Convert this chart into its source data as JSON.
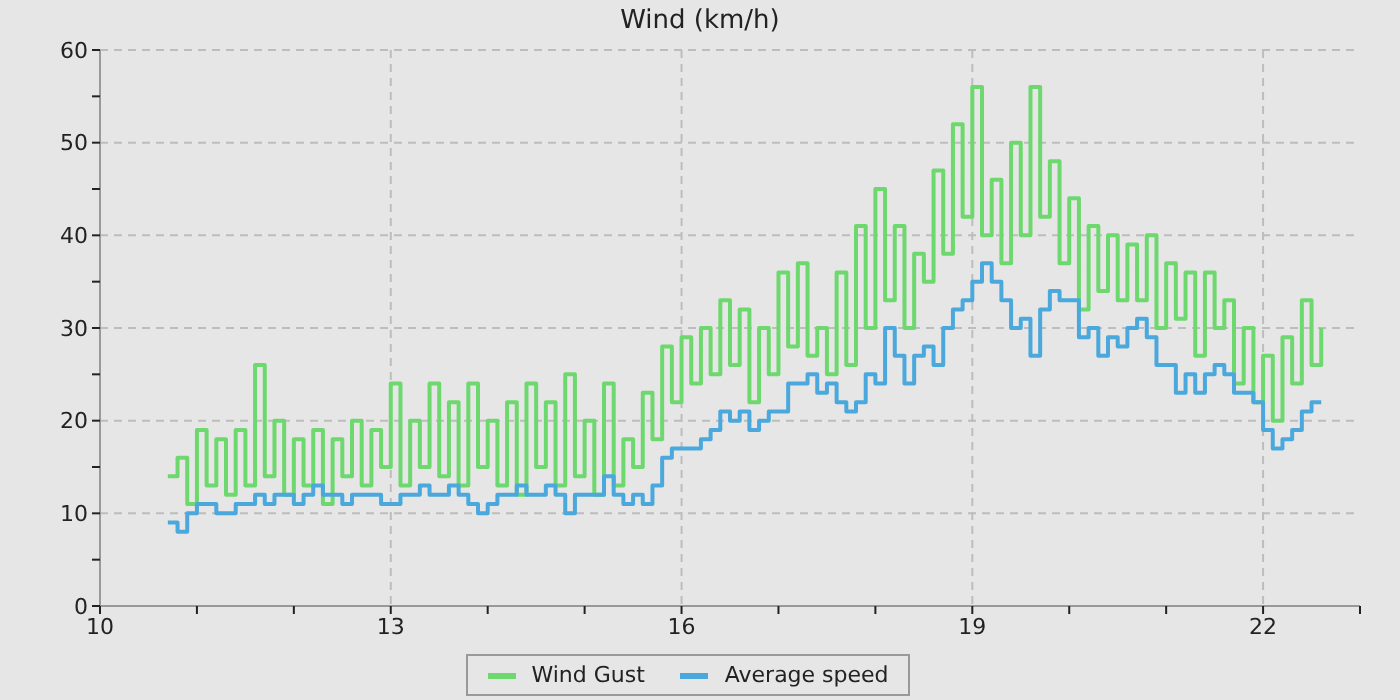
{
  "chart_data": {
    "type": "step",
    "title": "Wind (km/h)",
    "x": [
      10.7,
      10.8,
      10.9,
      11.0,
      11.1,
      11.2,
      11.3,
      11.4,
      11.5,
      11.6,
      11.7,
      11.8,
      11.9,
      12.0,
      12.1,
      12.2,
      12.3,
      12.4,
      12.5,
      12.6,
      12.7,
      12.8,
      12.9,
      13.0,
      13.1,
      13.2,
      13.3,
      13.4,
      13.5,
      13.6,
      13.7,
      13.8,
      13.9,
      14.0,
      14.1,
      14.2,
      14.3,
      14.4,
      14.5,
      14.6,
      14.7,
      14.8,
      14.9,
      15.0,
      15.1,
      15.2,
      15.3,
      15.4,
      15.5,
      15.6,
      15.7,
      15.8,
      15.9,
      16.0,
      16.1,
      16.2,
      16.3,
      16.4,
      16.5,
      16.6,
      16.7,
      16.8,
      16.9,
      17.0,
      17.1,
      17.2,
      17.3,
      17.4,
      17.5,
      17.6,
      17.7,
      17.8,
      17.9,
      18.0,
      18.1,
      18.2,
      18.3,
      18.4,
      18.5,
      18.6,
      18.7,
      18.8,
      18.9,
      19.0,
      19.1,
      19.2,
      19.3,
      19.4,
      19.5,
      19.6,
      19.7,
      19.8,
      19.9,
      20.0,
      20.1,
      20.2,
      20.3,
      20.4,
      20.5,
      20.6,
      20.7,
      20.8,
      20.9,
      21.0,
      21.1,
      21.2,
      21.3,
      21.4,
      21.5,
      21.6,
      21.7,
      21.8,
      21.9,
      22.0,
      22.1,
      22.2,
      22.3,
      22.4,
      22.5,
      22.6
    ],
    "series": [
      {
        "name": "Wind Gust",
        "color": "#6dd86d",
        "values": [
          14,
          16,
          11,
          19,
          13,
          18,
          12,
          19,
          13,
          26,
          14,
          20,
          12,
          18,
          13,
          19,
          11,
          18,
          14,
          20,
          13,
          19,
          15,
          24,
          13,
          20,
          15,
          24,
          14,
          22,
          13,
          24,
          15,
          20,
          13,
          22,
          12,
          24,
          15,
          22,
          13,
          25,
          14,
          20,
          12,
          24,
          13,
          18,
          15,
          23,
          18,
          28,
          22,
          29,
          24,
          30,
          25,
          33,
          26,
          32,
          22,
          30,
          25,
          36,
          28,
          37,
          27,
          30,
          25,
          36,
          26,
          41,
          30,
          45,
          33,
          41,
          30,
          38,
          35,
          47,
          38,
          52,
          42,
          56,
          40,
          46,
          37,
          50,
          40,
          56,
          42,
          48,
          37,
          44,
          32,
          41,
          34,
          40,
          33,
          39,
          33,
          40,
          30,
          37,
          31,
          36,
          27,
          36,
          30,
          33,
          24,
          30,
          22,
          27,
          20,
          29,
          24,
          33,
          26,
          30
        ]
      },
      {
        "name": "Average speed",
        "color": "#4aa8dc",
        "values": [
          9,
          8,
          10,
          11,
          11,
          10,
          10,
          11,
          11,
          12,
          11,
          12,
          12,
          11,
          12,
          13,
          12,
          12,
          11,
          12,
          12,
          12,
          11,
          11,
          12,
          12,
          13,
          12,
          12,
          13,
          12,
          11,
          10,
          11,
          12,
          12,
          13,
          12,
          12,
          13,
          12,
          10,
          12,
          12,
          12,
          14,
          12,
          11,
          12,
          11,
          13,
          16,
          17,
          17,
          17,
          18,
          19,
          21,
          20,
          21,
          19,
          20,
          21,
          21,
          24,
          24,
          25,
          23,
          24,
          22,
          21,
          22,
          25,
          24,
          30,
          27,
          24,
          27,
          28,
          26,
          30,
          32,
          33,
          35,
          37,
          35,
          33,
          30,
          31,
          27,
          32,
          34,
          33,
          33,
          29,
          30,
          27,
          29,
          28,
          30,
          31,
          29,
          26,
          26,
          23,
          25,
          23,
          25,
          26,
          25,
          23,
          23,
          22,
          19,
          17,
          18,
          19,
          21,
          22,
          22
        ]
      }
    ],
    "xlim": [
      10,
      23
    ],
    "xticks": [
      10,
      {
        "value": 11,
        "label": null
      },
      {
        "value": 12,
        "label": null
      },
      13,
      {
        "value": 14,
        "label": null
      },
      {
        "value": 15,
        "label": null
      },
      16,
      {
        "value": 17,
        "label": null
      },
      {
        "value": 18,
        "label": null
      },
      19,
      {
        "value": 20,
        "label": null
      },
      {
        "value": 21,
        "label": null
      },
      22,
      {
        "value": 23,
        "label": null
      }
    ],
    "ylim": [
      0,
      60
    ],
    "yticks": [
      0,
      {
        "value": 5,
        "label": null
      },
      10,
      {
        "value": 15,
        "label": null
      },
      20,
      {
        "value": 25,
        "label": null
      },
      30,
      {
        "value": 35,
        "label": null
      },
      40,
      {
        "value": 45,
        "label": null
      },
      50,
      {
        "value": 55,
        "label": null
      },
      60
    ],
    "grid": true,
    "legend": "bottom",
    "line_style": "solid",
    "marker": "none"
  }
}
